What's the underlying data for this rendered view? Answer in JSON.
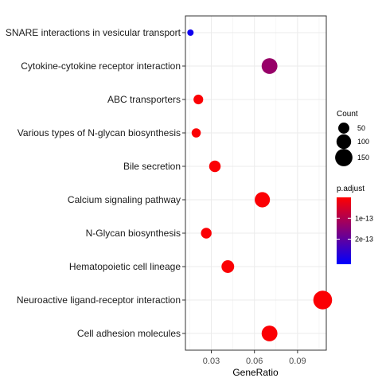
{
  "chart_data": {
    "type": "scatter",
    "xlabel": "GeneRatio",
    "xlim": [
      0.012,
      0.11
    ],
    "xticks": [
      0.03,
      0.06,
      0.09
    ],
    "xtick_labels": [
      "0.03",
      "0.06",
      "0.09"
    ],
    "grid": true,
    "legend_placement": "right",
    "categories": [
      "SNARE interactions in vesicular transport",
      "Cytokine-cytokine receptor interaction",
      "ABC transporters",
      "Various types of N-glycan biosynthesis",
      "Bile secretion",
      "Calcium signaling pathway",
      "N-Glycan biosynthesis",
      "Hematopoietic cell lineage",
      "Neuroactive ligand-receptor interaction",
      "Cell adhesion molecules"
    ],
    "points": [
      {
        "term": "SNARE interactions in vesicular transport",
        "gene_ratio": 0.0155,
        "count": 10,
        "p_adjust": 3e-13
      },
      {
        "term": "Cytokine-cytokine receptor interaction",
        "gene_ratio": 0.0705,
        "count": 120,
        "p_adjust": 1.3e-13
      },
      {
        "term": "ABC transporters",
        "gene_ratio": 0.021,
        "count": 35,
        "p_adjust": 5e-15
      },
      {
        "term": "Various types of N-glycan biosynthesis",
        "gene_ratio": 0.0195,
        "count": 30,
        "p_adjust": 5e-15
      },
      {
        "term": "Bile secretion",
        "gene_ratio": 0.0325,
        "count": 55,
        "p_adjust": 5e-15
      },
      {
        "term": "Calcium signaling pathway",
        "gene_ratio": 0.0655,
        "count": 110,
        "p_adjust": 5e-15
      },
      {
        "term": "N-Glycan biosynthesis",
        "gene_ratio": 0.0265,
        "count": 45,
        "p_adjust": 5e-15
      },
      {
        "term": "Hematopoietic cell lineage",
        "gene_ratio": 0.0415,
        "count": 70,
        "p_adjust": 5e-15
      },
      {
        "term": "Neuroactive ligand-receptor interaction",
        "gene_ratio": 0.1075,
        "count": 180,
        "p_adjust": 5e-15
      },
      {
        "term": "Cell adhesion molecules",
        "gene_ratio": 0.0705,
        "count": 120,
        "p_adjust": 5e-15
      }
    ],
    "size_legend": {
      "title": "Count",
      "entries": [
        {
          "label": "50",
          "value": 50
        },
        {
          "label": "100",
          "value": 100
        },
        {
          "label": "150",
          "value": 150
        }
      ]
    },
    "color_legend": {
      "title": "p.adjust",
      "min": 0,
      "max": 3.2e-13,
      "low_color": "#ff0000",
      "high_color": "#0000ff",
      "ticks": [
        {
          "label": "1e-13",
          "value": 1e-13
        },
        {
          "label": "2e-13",
          "value": 2e-13
        }
      ]
    }
  }
}
